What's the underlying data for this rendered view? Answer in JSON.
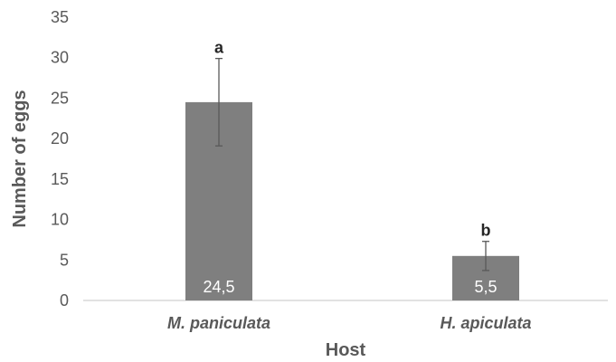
{
  "chart_data": {
    "type": "bar",
    "categories": [
      "M. paniculata",
      "H. apiculata"
    ],
    "values": [
      24.5,
      5.5
    ],
    "value_labels": [
      "24,5",
      "5,5"
    ],
    "errors": [
      5.4,
      1.8
    ],
    "significance": [
      "a",
      "b"
    ],
    "xlabel": "Host",
    "ylabel": "Number of eggs",
    "ylim": [
      0,
      35
    ],
    "yticks": [
      0,
      5,
      10,
      15,
      20,
      25,
      30,
      35
    ],
    "grid": false,
    "legend": "none",
    "colors": {
      "bar": "#7f7f7f",
      "axis": "#d9d9d9",
      "error_bar": "#595959"
    }
  }
}
